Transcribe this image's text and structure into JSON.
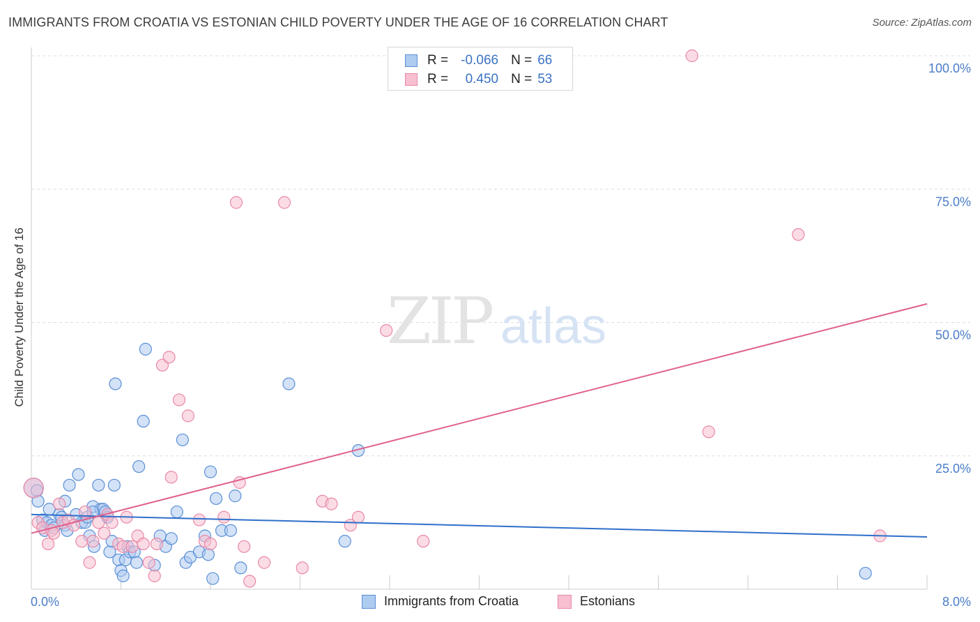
{
  "title": "IMMIGRANTS FROM CROATIA VS ESTONIAN CHILD POVERTY UNDER THE AGE OF 16 CORRELATION CHART",
  "source": "Source: ZipAtlas.com",
  "watermark": {
    "zip": "ZIP",
    "atlas": "atlas"
  },
  "legend": {
    "rows": [
      {
        "r_label": "R =",
        "r_value": "-0.066",
        "n_label": "N =",
        "n_value": "66"
      },
      {
        "r_label": "R =",
        "r_value": "0.450",
        "n_label": "N =",
        "n_value": "53"
      }
    ]
  },
  "bottom_legend": [
    "Immigrants from Croatia",
    "Estonians"
  ],
  "colors": {
    "blue_fill": "#aecbf0",
    "blue_stroke": "#5b8fd6",
    "blue_line": "#2f6fca",
    "pink_fill": "#f7bfd0",
    "pink_stroke": "#e888a8",
    "pink_line": "#e0608c",
    "grid": "#dddddd",
    "tick_text": "#4a7cc9"
  },
  "chart_data": {
    "type": "scatter",
    "title": "IMMIGRANTS FROM CROATIA VS ESTONIAN CHILD POVERTY UNDER THE AGE OF 16 CORRELATION CHART",
    "xlabel": "",
    "ylabel": "Child Poverty Under the Age of 16",
    "xlim": [
      0,
      8
    ],
    "ylim": [
      0,
      100
    ],
    "x_tick_labels": [
      "0.0%",
      "8.0%"
    ],
    "y_ticks": [
      25,
      50,
      75,
      100
    ],
    "y_tick_labels": [
      "25.0%",
      "50.0%",
      "75.0%",
      "100.0%"
    ],
    "grid": true,
    "series": [
      {
        "name": "Immigrants from Croatia",
        "r": -0.066,
        "n": 66,
        "trend": {
          "x": [
            0,
            8
          ],
          "y": [
            14.0,
            9.8
          ]
        },
        "points": [
          [
            0.02,
            19.0
          ],
          [
            0.05,
            18.5
          ],
          [
            0.06,
            16.5
          ],
          [
            0.1,
            13.0
          ],
          [
            0.12,
            11.0
          ],
          [
            0.14,
            12.5
          ],
          [
            0.16,
            15.0
          ],
          [
            0.18,
            12.0
          ],
          [
            0.2,
            11.5
          ],
          [
            0.25,
            14.0
          ],
          [
            0.27,
            13.5
          ],
          [
            0.3,
            12.0
          ],
          [
            0.32,
            11.0
          ],
          [
            0.34,
            19.5
          ],
          [
            0.4,
            14.0
          ],
          [
            0.42,
            21.5
          ],
          [
            0.45,
            12.5
          ],
          [
            0.48,
            12.5
          ],
          [
            0.5,
            13.5
          ],
          [
            0.52,
            10.0
          ],
          [
            0.55,
            15.5
          ],
          [
            0.56,
            8.0
          ],
          [
            0.6,
            19.5
          ],
          [
            0.62,
            15.0
          ],
          [
            0.64,
            15.0
          ],
          [
            0.66,
            14.5
          ],
          [
            0.68,
            13.5
          ],
          [
            0.7,
            7.0
          ],
          [
            0.72,
            9.0
          ],
          [
            0.74,
            19.5
          ],
          [
            0.75,
            38.5
          ],
          [
            0.78,
            5.5
          ],
          [
            0.8,
            3.5
          ],
          [
            0.82,
            2.5
          ],
          [
            0.84,
            5.5
          ],
          [
            0.86,
            8.0
          ],
          [
            0.88,
            7.0
          ],
          [
            0.92,
            7.0
          ],
          [
            0.94,
            5.0
          ],
          [
            0.96,
            23.0
          ],
          [
            1.0,
            31.5
          ],
          [
            1.02,
            45.0
          ],
          [
            1.1,
            4.5
          ],
          [
            1.15,
            10.0
          ],
          [
            1.2,
            8.0
          ],
          [
            1.25,
            9.5
          ],
          [
            1.3,
            14.5
          ],
          [
            1.35,
            28.0
          ],
          [
            1.38,
            5.0
          ],
          [
            1.42,
            6.0
          ],
          [
            1.5,
            7.0
          ],
          [
            1.55,
            10.0
          ],
          [
            1.58,
            6.5
          ],
          [
            1.6,
            22.0
          ],
          [
            1.62,
            2.0
          ],
          [
            1.65,
            17.0
          ],
          [
            1.7,
            11.0
          ],
          [
            1.78,
            11.0
          ],
          [
            1.82,
            17.5
          ],
          [
            1.87,
            4.0
          ],
          [
            2.3,
            38.5
          ],
          [
            2.8,
            9.0
          ],
          [
            2.92,
            26.0
          ],
          [
            7.45,
            3.0
          ],
          [
            0.55,
            14.5
          ],
          [
            0.3,
            16.5
          ]
        ]
      },
      {
        "name": "Estonians",
        "r": 0.45,
        "n": 53,
        "trend": {
          "x": [
            0,
            8
          ],
          "y": [
            10.5,
            53.5
          ]
        },
        "points": [
          [
            0.02,
            19.0
          ],
          [
            0.06,
            12.5
          ],
          [
            0.1,
            11.5
          ],
          [
            0.15,
            8.5
          ],
          [
            0.18,
            11.0
          ],
          [
            0.2,
            10.5
          ],
          [
            0.25,
            16.0
          ],
          [
            0.28,
            12.5
          ],
          [
            0.33,
            13.0
          ],
          [
            0.38,
            12.0
          ],
          [
            0.45,
            9.0
          ],
          [
            0.48,
            14.5
          ],
          [
            0.52,
            5.0
          ],
          [
            0.55,
            9.0
          ],
          [
            0.6,
            12.5
          ],
          [
            0.65,
            10.5
          ],
          [
            0.68,
            14.0
          ],
          [
            0.72,
            12.5
          ],
          [
            0.78,
            8.5
          ],
          [
            0.82,
            8.0
          ],
          [
            0.85,
            13.5
          ],
          [
            0.9,
            8.0
          ],
          [
            0.95,
            10.0
          ],
          [
            1.0,
            8.5
          ],
          [
            1.05,
            5.0
          ],
          [
            1.1,
            2.5
          ],
          [
            1.12,
            8.5
          ],
          [
            1.17,
            42.0
          ],
          [
            1.23,
            43.5
          ],
          [
            1.25,
            21.0
          ],
          [
            1.32,
            35.5
          ],
          [
            1.4,
            32.5
          ],
          [
            1.5,
            13.0
          ],
          [
            1.55,
            9.0
          ],
          [
            1.6,
            8.5
          ],
          [
            1.72,
            13.5
          ],
          [
            1.83,
            72.5
          ],
          [
            1.86,
            20.0
          ],
          [
            1.9,
            8.0
          ],
          [
            1.95,
            1.5
          ],
          [
            2.08,
            5.0
          ],
          [
            2.26,
            72.5
          ],
          [
            2.42,
            4.0
          ],
          [
            2.6,
            16.5
          ],
          [
            2.68,
            16.0
          ],
          [
            2.85,
            12.0
          ],
          [
            2.92,
            13.5
          ],
          [
            3.17,
            48.5
          ],
          [
            3.5,
            9.0
          ],
          [
            5.9,
            100.0
          ],
          [
            6.05,
            29.5
          ],
          [
            6.85,
            66.5
          ],
          [
            7.58,
            10.0
          ]
        ]
      }
    ]
  }
}
